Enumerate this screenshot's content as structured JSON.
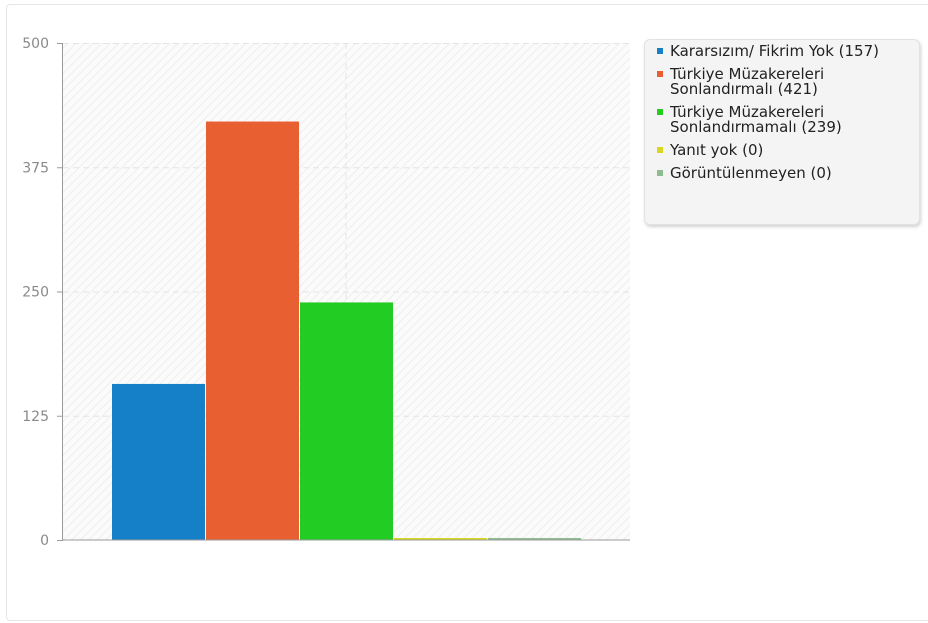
{
  "chart_data": {
    "type": "bar",
    "categories": [
      "Kararsızım/ Fikrim Yok",
      "Türkiye Müzakereleri Sonlandırmalı",
      "Türkiye Müzakereleri Sonlandırmamalı",
      "Yanıt yok",
      "Görüntülenmeyen"
    ],
    "values": [
      157,
      421,
      239,
      0,
      0
    ],
    "colors": [
      "#1580c8",
      "#e85f32",
      "#22cc22",
      "#d8d820",
      "#8fbc8f"
    ],
    "ylim": [
      0,
      500
    ],
    "yticks": [
      "500",
      "375",
      "250",
      "125",
      "0"
    ],
    "ytick_values": [
      500,
      375,
      250,
      125,
      0
    ],
    "grid": true,
    "legend_position": "top-right",
    "legend": [
      "Kararsızım/ Fikrim Yok (157)",
      "Türkiye Müzakereleri Sonlandırmalı (421)",
      "Türkiye Müzakereleri Sonlandırmamalı (239)",
      "Yanıt yok (0)",
      "Görüntülenmeyen (0)"
    ]
  }
}
